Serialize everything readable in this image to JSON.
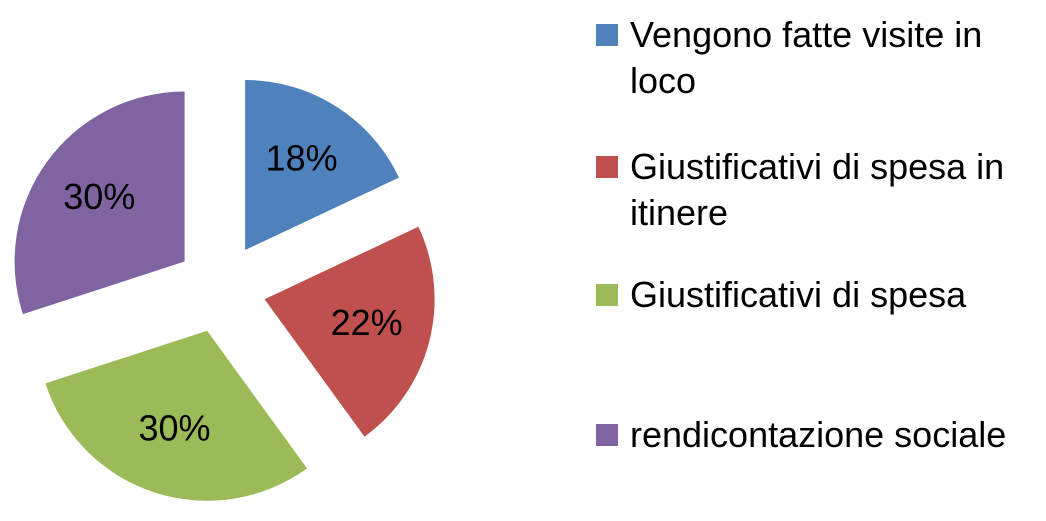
{
  "chart_data": {
    "type": "pie",
    "categories": [
      "Vengono fatte visite in loco",
      "Giustificativi di spesa in itinere",
      "Giustificativi di spesa",
      "rendicontazione sociale"
    ],
    "values": [
      18,
      22,
      30,
      30
    ],
    "value_labels": [
      "18%",
      "22%",
      "30%",
      "30%"
    ],
    "colors": [
      "#4f81bd",
      "#c0504d",
      "#9bbb59",
      "#8064a2"
    ],
    "legend": "right"
  }
}
